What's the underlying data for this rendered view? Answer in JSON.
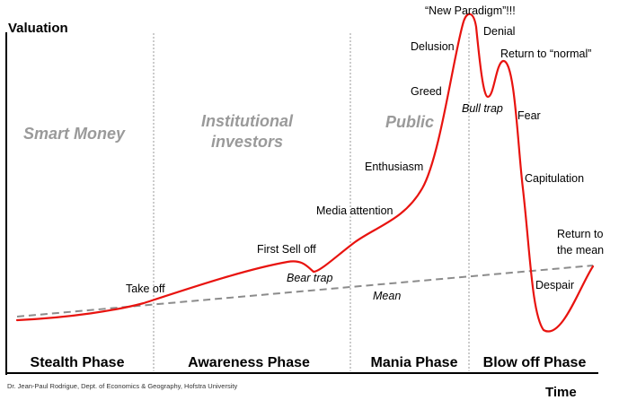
{
  "diagram": {
    "axes": {
      "y_title": "Valuation",
      "x_title": "Time"
    },
    "investor_groups": [
      "Smart Money",
      "Institutional investors",
      "Public"
    ],
    "phases": [
      "Stealth Phase",
      "Awareness Phase",
      "Mania Phase",
      "Blow off Phase"
    ],
    "curve_labels": [
      {
        "text": "Take off"
      },
      {
        "text": "First Sell off"
      },
      {
        "text": "Bear trap"
      },
      {
        "text": "Media attention"
      },
      {
        "text": "Enthusiasm"
      },
      {
        "text": "Greed"
      },
      {
        "text": "Delusion"
      },
      {
        "text": "“New Paradigm”!!!"
      },
      {
        "text": "Denial"
      },
      {
        "text": "Bull trap"
      },
      {
        "text": "Return to “normal”"
      },
      {
        "text": "Fear"
      },
      {
        "text": "Capitulation"
      },
      {
        "text": "Despair"
      },
      {
        "text": "Return to"
      },
      {
        "text": "the mean"
      }
    ],
    "mean_label": "Mean",
    "credit": "Dr. Jean-Paul Rodrigue, Dept. of Economics & Geography, Hofstra University",
    "colors": {
      "curve": "#e8130f",
      "mean_line": "#8c8c8c",
      "divider": "#999999",
      "group_text": "#9a9a9a",
      "axis": "#000000"
    }
  }
}
